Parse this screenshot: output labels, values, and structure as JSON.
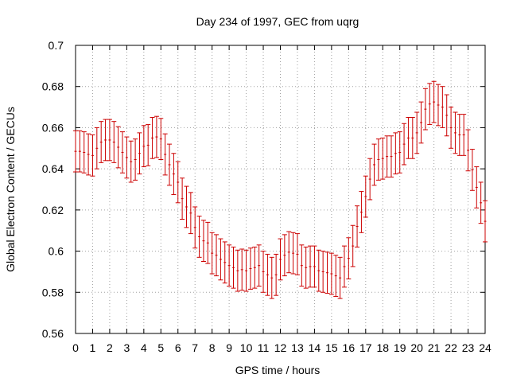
{
  "chart_data": {
    "type": "scatter",
    "title": "Day 234 of 1997, GEC from uqrg",
    "xlabel": "GPS time / hours",
    "ylabel": "Global Electron Content / GECUs",
    "xlim": [
      0,
      24
    ],
    "ylim": [
      0.56,
      0.7
    ],
    "xticks": [
      0,
      1,
      2,
      3,
      4,
      5,
      6,
      7,
      8,
      9,
      10,
      11,
      12,
      13,
      14,
      15,
      16,
      17,
      18,
      19,
      20,
      21,
      22,
      23,
      24
    ],
    "yticks": [
      0.56,
      0.58,
      0.6,
      0.62,
      0.64,
      0.66,
      0.68,
      0.7
    ],
    "ytick_labels": [
      "0.56",
      "0.58",
      "0.6",
      "0.62",
      "0.64",
      "0.66",
      "0.68",
      "0.7"
    ],
    "grid": true,
    "series_color": "#cc0000",
    "series": [
      {
        "name": "GEC",
        "style": "errorbars",
        "error": 0.01,
        "points": [
          [
            0.0,
            0.6485
          ],
          [
            0.25,
            0.6485
          ],
          [
            0.5,
            0.648
          ],
          [
            0.75,
            0.647
          ],
          [
            1.0,
            0.6465
          ],
          [
            1.25,
            0.65
          ],
          [
            1.5,
            0.653
          ],
          [
            1.75,
            0.654
          ],
          [
            2.0,
            0.654
          ],
          [
            2.25,
            0.653
          ],
          [
            2.5,
            0.6505
          ],
          [
            2.75,
            0.648
          ],
          [
            3.0,
            0.6455
          ],
          [
            3.25,
            0.6435
          ],
          [
            3.5,
            0.6445
          ],
          [
            3.75,
            0.6475
          ],
          [
            4.0,
            0.651
          ],
          [
            4.25,
            0.6515
          ],
          [
            4.5,
            0.655
          ],
          [
            4.75,
            0.6555
          ],
          [
            5.0,
            0.6545
          ],
          [
            5.25,
            0.647
          ],
          [
            5.5,
            0.642
          ],
          [
            5.75,
            0.6375
          ],
          [
            6.0,
            0.6335
          ],
          [
            6.25,
            0.6255
          ],
          [
            6.5,
            0.6215
          ],
          [
            6.75,
            0.6185
          ],
          [
            7.0,
            0.6115
          ],
          [
            7.25,
            0.607
          ],
          [
            7.5,
            0.605
          ],
          [
            7.75,
            0.604
          ],
          [
            8.0,
            0.599
          ],
          [
            8.25,
            0.598
          ],
          [
            8.5,
            0.596
          ],
          [
            8.75,
            0.5945
          ],
          [
            9.0,
            0.593
          ],
          [
            9.25,
            0.592
          ],
          [
            9.5,
            0.5905
          ],
          [
            9.75,
            0.591
          ],
          [
            10.0,
            0.5905
          ],
          [
            10.25,
            0.5915
          ],
          [
            10.5,
            0.592
          ],
          [
            10.75,
            0.593
          ],
          [
            11.0,
            0.59
          ],
          [
            11.25,
            0.5885
          ],
          [
            11.5,
            0.587
          ],
          [
            11.75,
            0.5885
          ],
          [
            12.0,
            0.596
          ],
          [
            12.25,
            0.598
          ],
          [
            12.5,
            0.5995
          ],
          [
            12.75,
            0.599
          ],
          [
            13.0,
            0.5985
          ],
          [
            13.25,
            0.593
          ],
          [
            13.5,
            0.592
          ],
          [
            13.75,
            0.5925
          ],
          [
            14.0,
            0.5925
          ],
          [
            14.25,
            0.5905
          ],
          [
            14.5,
            0.59
          ],
          [
            14.75,
            0.5895
          ],
          [
            15.0,
            0.589
          ],
          [
            15.25,
            0.588
          ],
          [
            15.5,
            0.587
          ],
          [
            15.75,
            0.5925
          ],
          [
            16.0,
            0.5965
          ],
          [
            16.25,
            0.6025
          ],
          [
            16.5,
            0.612
          ],
          [
            16.75,
            0.619
          ],
          [
            17.0,
            0.6265
          ],
          [
            17.25,
            0.635
          ],
          [
            17.5,
            0.642
          ],
          [
            17.75,
            0.6445
          ],
          [
            18.0,
            0.645
          ],
          [
            18.25,
            0.646
          ],
          [
            18.5,
            0.646
          ],
          [
            18.75,
            0.6475
          ],
          [
            19.0,
            0.648
          ],
          [
            19.25,
            0.652
          ],
          [
            19.5,
            0.655
          ],
          [
            19.75,
            0.655
          ],
          [
            20.0,
            0.6575
          ],
          [
            20.25,
            0.6625
          ],
          [
            20.5,
            0.669
          ],
          [
            20.75,
            0.6715
          ],
          [
            21.0,
            0.6725
          ],
          [
            21.25,
            0.671
          ],
          [
            21.5,
            0.67
          ],
          [
            21.75,
            0.666
          ],
          [
            22.0,
            0.66
          ],
          [
            22.25,
            0.6575
          ],
          [
            22.5,
            0.6565
          ],
          [
            22.75,
            0.6565
          ],
          [
            23.0,
            0.649
          ],
          [
            23.25,
            0.6395
          ],
          [
            23.5,
            0.631
          ],
          [
            23.75,
            0.6235
          ],
          [
            24.0,
            0.6145
          ]
        ]
      }
    ]
  }
}
